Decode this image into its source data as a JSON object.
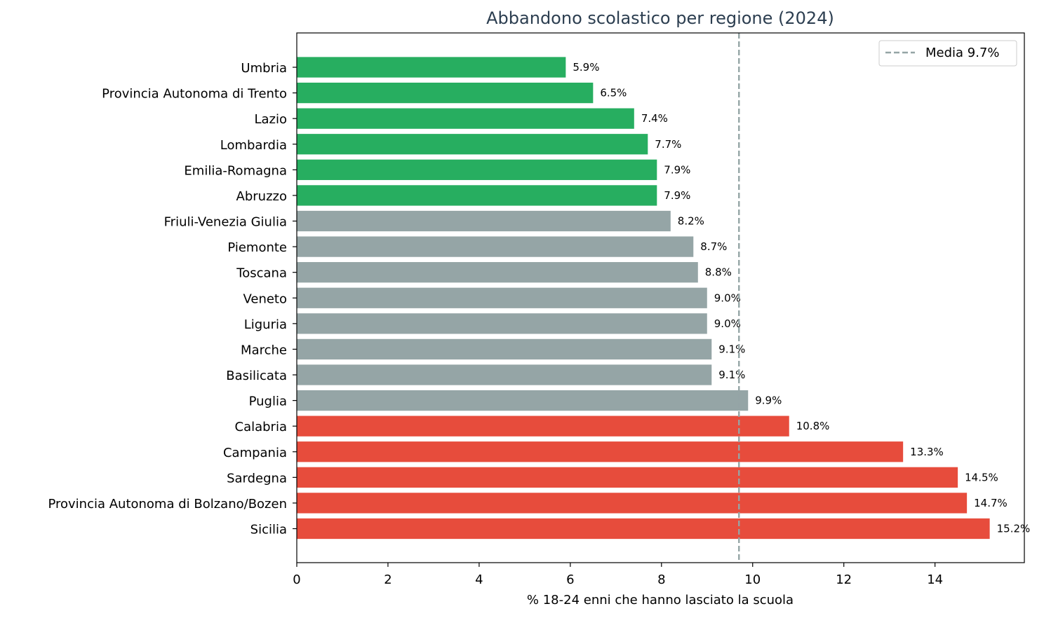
{
  "chart_data": {
    "type": "bar",
    "orientation": "horizontal",
    "title": "Abbandono scolastico per regione (2024)",
    "xlabel": "% 18-24 enni che hanno lasciato la scuola",
    "ylabel": "",
    "xlim": [
      0,
      15.96
    ],
    "xticks": [
      0,
      2,
      4,
      6,
      8,
      10,
      12,
      14
    ],
    "categories": [
      "Umbria",
      "Provincia Autonoma di Trento",
      "Lazio",
      "Lombardia",
      "Emilia-Romagna",
      "Abruzzo",
      "Friuli-Venezia Giulia",
      "Piemonte",
      "Toscana",
      "Veneto",
      "Liguria",
      "Marche",
      "Basilicata",
      "Puglia",
      "Calabria",
      "Campania",
      "Sardegna",
      "Provincia Autonoma di Bolzano/Bozen",
      "Sicilia"
    ],
    "values": [
      5.9,
      6.5,
      7.4,
      7.7,
      7.9,
      7.9,
      8.2,
      8.7,
      8.8,
      9.0,
      9.0,
      9.1,
      9.1,
      9.9,
      10.8,
      13.3,
      14.5,
      14.7,
      15.2
    ],
    "value_labels": [
      "5.9%",
      "6.5%",
      "7.4%",
      "7.7%",
      "7.9%",
      "7.9%",
      "8.2%",
      "8.7%",
      "8.8%",
      "9.0%",
      "9.0%",
      "9.1%",
      "9.1%",
      "9.9%",
      "10.8%",
      "13.3%",
      "14.5%",
      "14.7%",
      "15.2%"
    ],
    "bar_colors": [
      "#27ae60",
      "#27ae60",
      "#27ae60",
      "#27ae60",
      "#27ae60",
      "#27ae60",
      "#95a5a6",
      "#95a5a6",
      "#95a5a6",
      "#95a5a6",
      "#95a5a6",
      "#95a5a6",
      "#95a5a6",
      "#95a5a6",
      "#e74c3c",
      "#e74c3c",
      "#e74c3c",
      "#e74c3c",
      "#e74c3c"
    ],
    "reference_line": {
      "value": 9.7,
      "label": "Media 9.7%",
      "color": "#95a5a6",
      "style": "dashed"
    },
    "legend": {
      "position": "top-right",
      "entries": [
        "Media 9.7%"
      ]
    },
    "grid": false
  }
}
